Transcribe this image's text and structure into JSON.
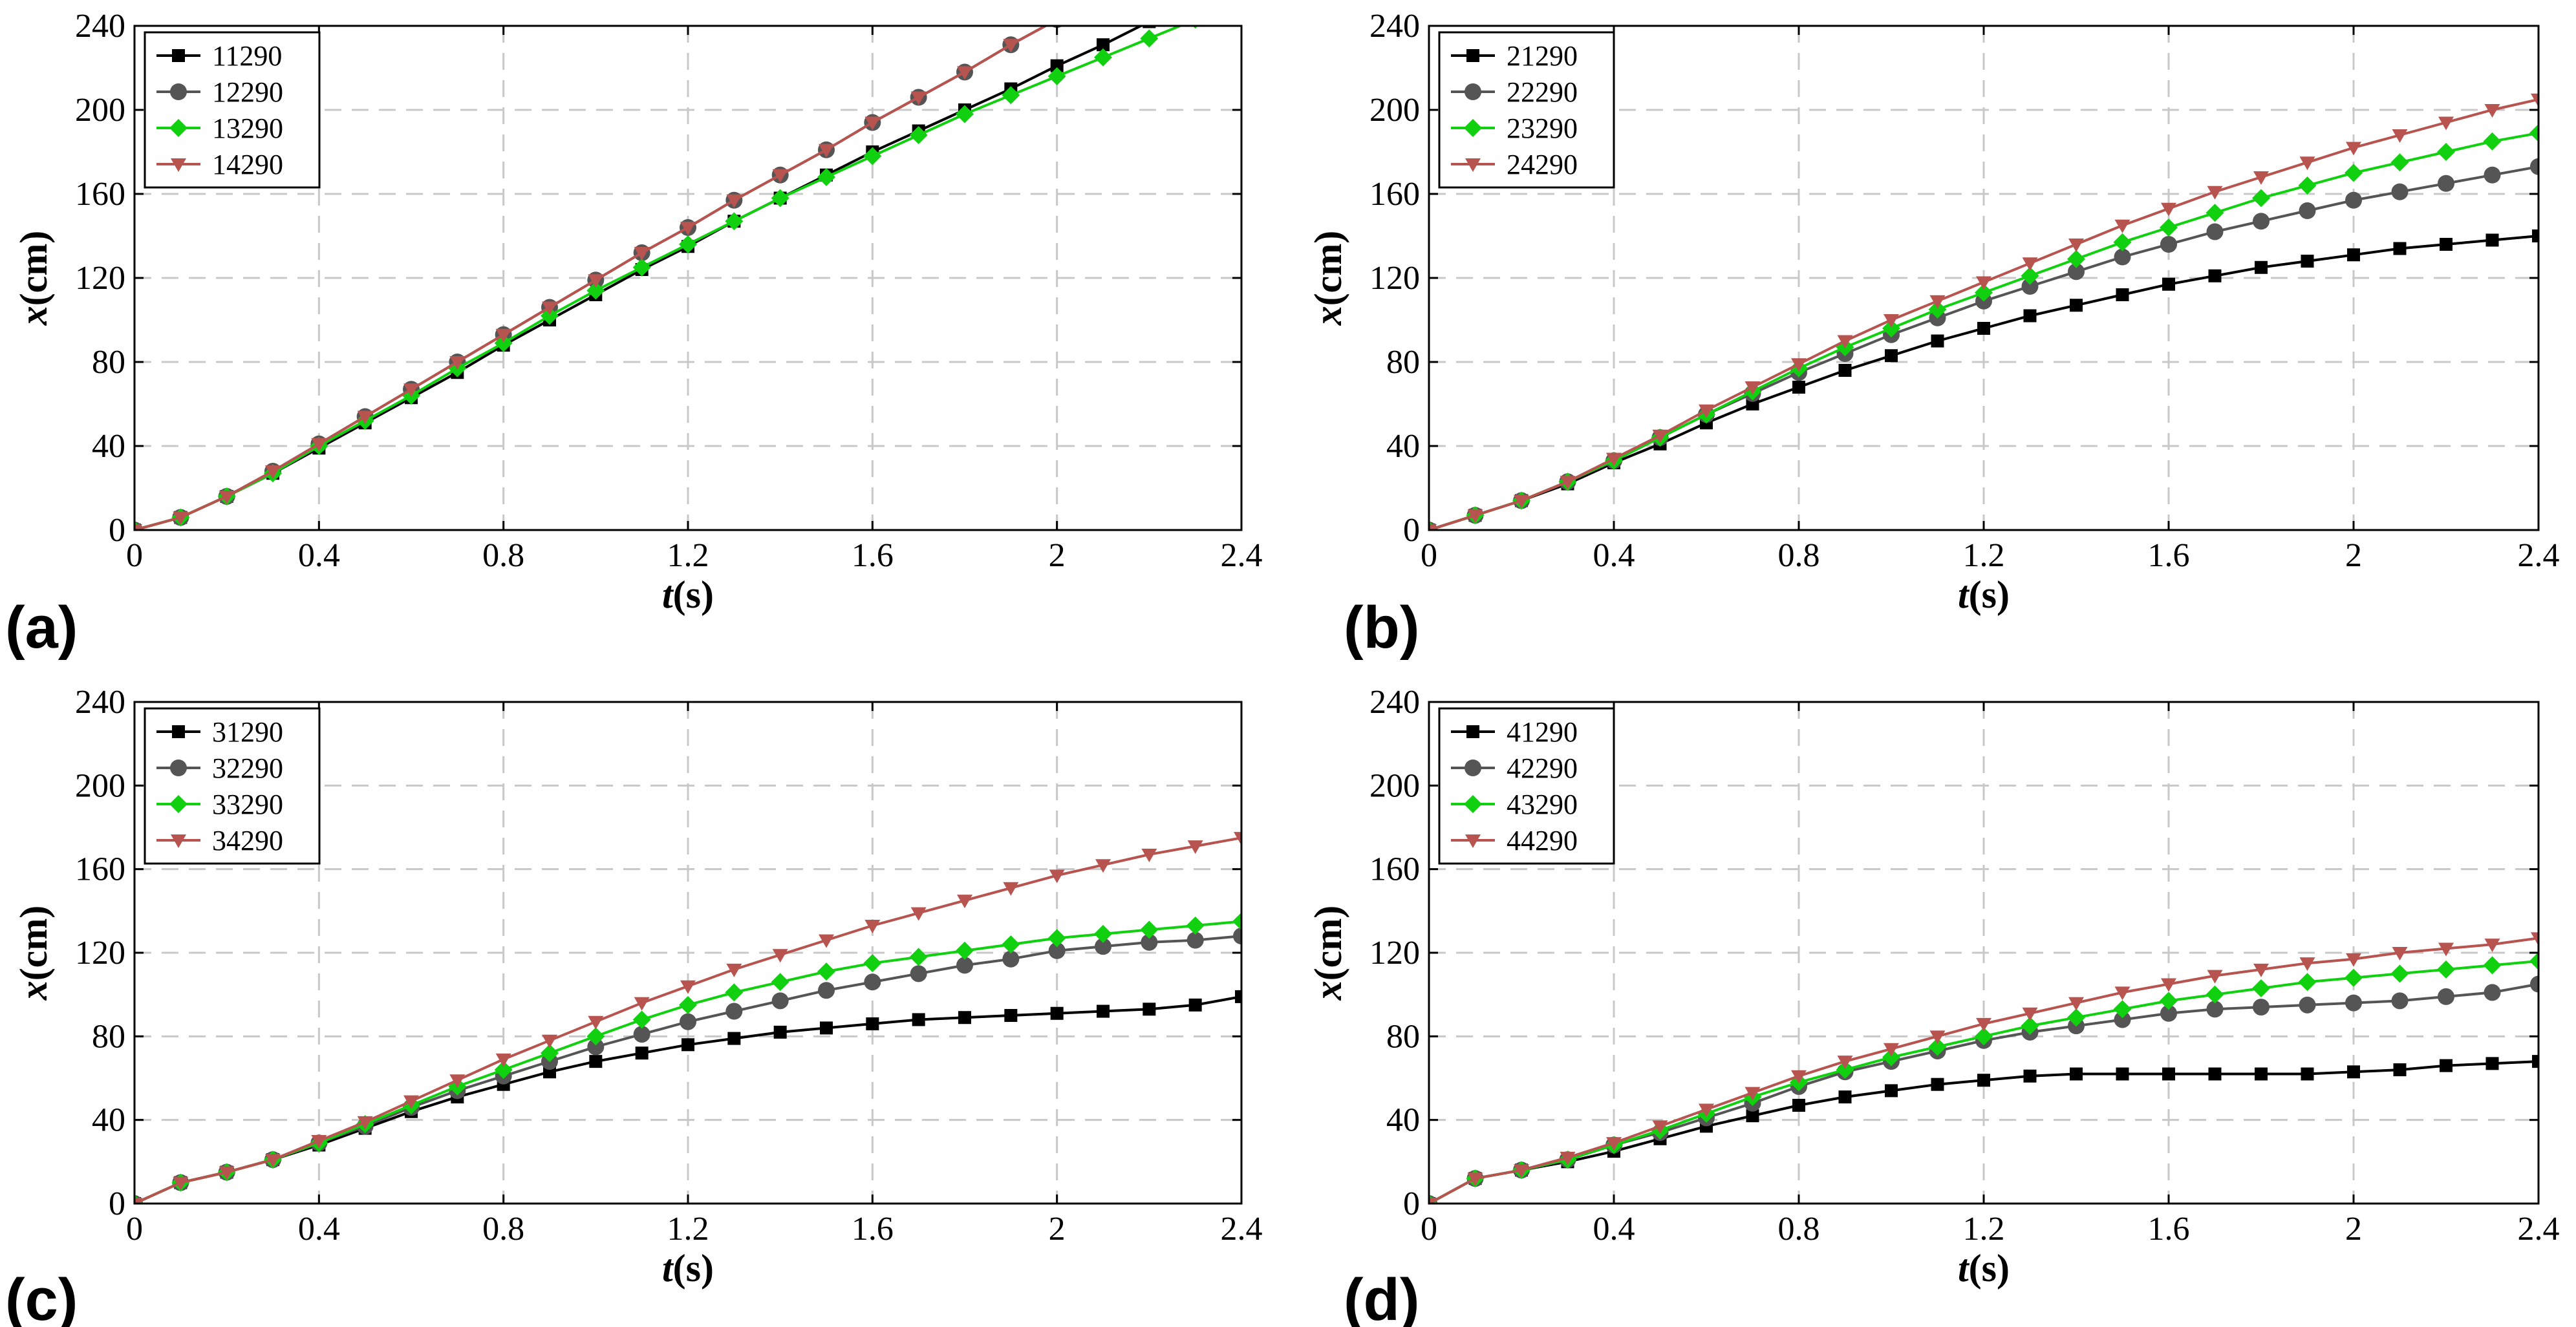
{
  "colors": {
    "s1": "#000000",
    "s2": "#555555",
    "s3": "#10d010",
    "s4": "#b85450"
  },
  "markers": [
    "square",
    "circle",
    "diamond",
    "triangle-down"
  ],
  "chart_data": [
    {
      "tag": "(a)",
      "type": "line",
      "xlabel_var": "t",
      "xlabel_unit": "(s)",
      "ylabel_var": "x",
      "ylabel_unit": "(cm)",
      "xlim": [
        0,
        2.4
      ],
      "ylim": [
        0,
        240
      ],
      "xticks": [
        0,
        0.4,
        0.8,
        1.2,
        1.6,
        2,
        2.4
      ],
      "xtick_labels": [
        "0",
        "0.4",
        "0.8",
        "1.2",
        "1.6",
        "2",
        "2.4"
      ],
      "yticks": [
        0,
        40,
        80,
        120,
        160,
        200,
        240
      ],
      "ytick_labels": [
        "0",
        "40",
        "80",
        "120",
        "160",
        "200",
        "240"
      ],
      "series": [
        {
          "name": "11290",
          "x": [
            0,
            0.1,
            0.2,
            0.3,
            0.4,
            0.5,
            0.6,
            0.7,
            0.8,
            0.9,
            1,
            1.1,
            1.2,
            1.3,
            1.4,
            1.5,
            1.6,
            1.7,
            1.8,
            1.9,
            2,
            2.1,
            2.2
          ],
          "y": [
            0,
            6,
            16,
            27,
            39,
            51,
            63,
            75,
            88,
            100,
            112,
            124,
            135,
            147,
            158,
            169,
            180,
            190,
            200,
            210,
            221,
            231,
            242
          ]
        },
        {
          "name": "12290",
          "x": [
            0,
            0.1,
            0.2,
            0.3,
            0.4,
            0.5,
            0.6,
            0.7,
            0.8,
            0.9,
            1,
            1.1,
            1.2,
            1.3,
            1.4,
            1.5,
            1.6,
            1.7,
            1.8,
            1.9,
            2
          ],
          "y": [
            0,
            6,
            16,
            28,
            41,
            54,
            67,
            80,
            93,
            106,
            119,
            132,
            144,
            157,
            169,
            181,
            194,
            206,
            218,
            231,
            243
          ]
        },
        {
          "name": "13290",
          "x": [
            0,
            0.1,
            0.2,
            0.3,
            0.4,
            0.5,
            0.6,
            0.7,
            0.8,
            0.9,
            1,
            1.1,
            1.2,
            1.3,
            1.4,
            1.5,
            1.6,
            1.7,
            1.8,
            1.9,
            2,
            2.1,
            2.2,
            2.3
          ],
          "y": [
            0,
            6,
            16,
            27,
            40,
            52,
            64,
            77,
            89,
            102,
            114,
            125,
            136,
            147,
            158,
            168,
            178,
            188,
            198,
            207,
            216,
            225,
            234,
            243
          ]
        },
        {
          "name": "14290",
          "x": [
            0,
            0.1,
            0.2,
            0.3,
            0.4,
            0.5,
            0.6,
            0.7,
            0.8,
            0.9,
            1,
            1.1,
            1.2,
            1.3,
            1.4,
            1.5,
            1.6,
            1.7,
            1.8,
            1.9,
            2
          ],
          "y": [
            0,
            6,
            16,
            28,
            41,
            54,
            67,
            80,
            93,
            106,
            119,
            132,
            144,
            157,
            169,
            181,
            194,
            206,
            218,
            231,
            243
          ]
        }
      ]
    },
    {
      "tag": "(b)",
      "type": "line",
      "xlabel_var": "t",
      "xlabel_unit": "(s)",
      "ylabel_var": "x",
      "ylabel_unit": "(cm)",
      "xlim": [
        0,
        2.4
      ],
      "ylim": [
        0,
        240
      ],
      "xticks": [
        0,
        0.4,
        0.8,
        1.2,
        1.6,
        2,
        2.4
      ],
      "xtick_labels": [
        "0",
        "0.4",
        "0.8",
        "1.2",
        "1.6",
        "2",
        "2.4"
      ],
      "yticks": [
        0,
        40,
        80,
        120,
        160,
        200,
        240
      ],
      "ytick_labels": [
        "0",
        "40",
        "80",
        "120",
        "160",
        "200",
        "240"
      ],
      "series": [
        {
          "name": "21290",
          "x": [
            0,
            0.1,
            0.2,
            0.3,
            0.4,
            0.5,
            0.6,
            0.7,
            0.8,
            0.9,
            1,
            1.1,
            1.2,
            1.3,
            1.4,
            1.5,
            1.6,
            1.7,
            1.8,
            1.9,
            2,
            2.1,
            2.2,
            2.3,
            2.4
          ],
          "y": [
            0,
            7,
            14,
            22,
            32,
            41,
            51,
            60,
            68,
            76,
            83,
            90,
            96,
            102,
            107,
            112,
            117,
            121,
            125,
            128,
            131,
            134,
            136,
            138,
            140
          ]
        },
        {
          "name": "22290",
          "x": [
            0,
            0.1,
            0.2,
            0.3,
            0.4,
            0.5,
            0.6,
            0.7,
            0.8,
            0.9,
            1,
            1.1,
            1.2,
            1.3,
            1.4,
            1.5,
            1.6,
            1.7,
            1.8,
            1.9,
            2,
            2.1,
            2.2,
            2.3,
            2.4
          ],
          "y": [
            0,
            7,
            14,
            23,
            33,
            44,
            55,
            65,
            75,
            84,
            93,
            101,
            109,
            116,
            123,
            130,
            136,
            142,
            147,
            152,
            157,
            161,
            165,
            169,
            173
          ]
        },
        {
          "name": "23290",
          "x": [
            0,
            0.1,
            0.2,
            0.3,
            0.4,
            0.5,
            0.6,
            0.7,
            0.8,
            0.9,
            1,
            1.1,
            1.2,
            1.3,
            1.4,
            1.5,
            1.6,
            1.7,
            1.8,
            1.9,
            2,
            2.1,
            2.2,
            2.3,
            2.4
          ],
          "y": [
            0,
            7,
            14,
            23,
            33,
            44,
            55,
            66,
            77,
            87,
            96,
            105,
            113,
            121,
            129,
            137,
            144,
            151,
            158,
            164,
            170,
            175,
            180,
            185,
            189
          ]
        },
        {
          "name": "24290",
          "x": [
            0,
            0.1,
            0.2,
            0.3,
            0.4,
            0.5,
            0.6,
            0.7,
            0.8,
            0.9,
            1,
            1.1,
            1.2,
            1.3,
            1.4,
            1.5,
            1.6,
            1.7,
            1.8,
            1.9,
            2,
            2.1,
            2.2,
            2.3,
            2.4
          ],
          "y": [
            0,
            7,
            14,
            23,
            34,
            45,
            57,
            68,
            79,
            90,
            100,
            109,
            118,
            127,
            136,
            145,
            153,
            161,
            168,
            175,
            182,
            188,
            194,
            200,
            205
          ]
        }
      ]
    },
    {
      "tag": "(c)",
      "type": "line",
      "xlabel_var": "t",
      "xlabel_unit": "(s)",
      "ylabel_var": "x",
      "ylabel_unit": "(cm)",
      "xlim": [
        0,
        2.4
      ],
      "ylim": [
        0,
        240
      ],
      "xticks": [
        0,
        0.4,
        0.8,
        1.2,
        1.6,
        2,
        2.4
      ],
      "xtick_labels": [
        "0",
        "0.4",
        "0.8",
        "1.2",
        "1.6",
        "2",
        "2.4"
      ],
      "yticks": [
        0,
        40,
        80,
        120,
        160,
        200,
        240
      ],
      "ytick_labels": [
        "0",
        "40",
        "80",
        "120",
        "160",
        "200",
        "240"
      ],
      "series": [
        {
          "name": "31290",
          "x": [
            0,
            0.1,
            0.2,
            0.3,
            0.4,
            0.5,
            0.6,
            0.7,
            0.8,
            0.9,
            1,
            1.1,
            1.2,
            1.3,
            1.4,
            1.5,
            1.6,
            1.7,
            1.8,
            1.9,
            2,
            2.1,
            2.2,
            2.3,
            2.4
          ],
          "y": [
            0,
            10,
            15,
            21,
            28,
            36,
            44,
            51,
            57,
            63,
            68,
            72,
            76,
            79,
            82,
            84,
            86,
            88,
            89,
            90,
            91,
            92,
            93,
            95,
            99
          ]
        },
        {
          "name": "32290",
          "x": [
            0,
            0.1,
            0.2,
            0.3,
            0.4,
            0.5,
            0.6,
            0.7,
            0.8,
            0.9,
            1,
            1.1,
            1.2,
            1.3,
            1.4,
            1.5,
            1.6,
            1.7,
            1.8,
            1.9,
            2,
            2.1,
            2.2,
            2.3,
            2.4
          ],
          "y": [
            0,
            10,
            15,
            21,
            29,
            37,
            46,
            54,
            61,
            68,
            75,
            81,
            87,
            92,
            97,
            102,
            106,
            110,
            114,
            117,
            121,
            123,
            125,
            126,
            128
          ]
        },
        {
          "name": "33290",
          "x": [
            0,
            0.1,
            0.2,
            0.3,
            0.4,
            0.5,
            0.6,
            0.7,
            0.8,
            0.9,
            1,
            1.1,
            1.2,
            1.3,
            1.4,
            1.5,
            1.6,
            1.7,
            1.8,
            1.9,
            2,
            2.1,
            2.2,
            2.3,
            2.4
          ],
          "y": [
            0,
            10,
            15,
            21,
            29,
            38,
            47,
            56,
            64,
            72,
            80,
            88,
            95,
            101,
            106,
            111,
            115,
            118,
            121,
            124,
            127,
            129,
            131,
            133,
            135
          ]
        },
        {
          "name": "34290",
          "x": [
            0,
            0.1,
            0.2,
            0.3,
            0.4,
            0.5,
            0.6,
            0.7,
            0.8,
            0.9,
            1,
            1.1,
            1.2,
            1.3,
            1.4,
            1.5,
            1.6,
            1.7,
            1.8,
            1.9,
            2,
            2.1,
            2.2,
            2.3,
            2.4
          ],
          "y": [
            0,
            10,
            15,
            21,
            30,
            39,
            49,
            59,
            69,
            78,
            87,
            96,
            104,
            112,
            119,
            126,
            133,
            139,
            145,
            151,
            157,
            162,
            167,
            171,
            175
          ]
        }
      ]
    },
    {
      "tag": "(d)",
      "type": "line",
      "xlabel_var": "t",
      "xlabel_unit": "(s)",
      "ylabel_var": "x",
      "ylabel_unit": "(cm)",
      "xlim": [
        0,
        2.4
      ],
      "ylim": [
        0,
        240
      ],
      "xticks": [
        0,
        0.4,
        0.8,
        1.2,
        1.6,
        2,
        2.4
      ],
      "xtick_labels": [
        "0",
        "0.4",
        "0.8",
        "1.2",
        "1.6",
        "2",
        "2.4"
      ],
      "yticks": [
        0,
        40,
        80,
        120,
        160,
        200,
        240
      ],
      "ytick_labels": [
        "0",
        "40",
        "80",
        "120",
        "160",
        "200",
        "240"
      ],
      "series": [
        {
          "name": "41290",
          "x": [
            0,
            0.1,
            0.2,
            0.3,
            0.4,
            0.5,
            0.6,
            0.7,
            0.8,
            0.9,
            1,
            1.1,
            1.2,
            1.3,
            1.4,
            1.5,
            1.6,
            1.7,
            1.8,
            1.9,
            2,
            2.1,
            2.2,
            2.3,
            2.4
          ],
          "y": [
            0,
            12,
            16,
            20,
            25,
            31,
            37,
            42,
            47,
            51,
            54,
            57,
            59,
            61,
            62,
            62,
            62,
            62,
            62,
            62,
            63,
            64,
            66,
            67,
            68
          ]
        },
        {
          "name": "42290",
          "x": [
            0,
            0.1,
            0.2,
            0.3,
            0.4,
            0.5,
            0.6,
            0.7,
            0.8,
            0.9,
            1,
            1.1,
            1.2,
            1.3,
            1.4,
            1.5,
            1.6,
            1.7,
            1.8,
            1.9,
            2,
            2.1,
            2.2,
            2.3,
            2.4
          ],
          "y": [
            0,
            12,
            16,
            21,
            28,
            34,
            41,
            48,
            56,
            63,
            68,
            73,
            78,
            82,
            85,
            88,
            91,
            93,
            94,
            95,
            96,
            97,
            99,
            101,
            105
          ]
        },
        {
          "name": "43290",
          "x": [
            0,
            0.1,
            0.2,
            0.3,
            0.4,
            0.5,
            0.6,
            0.7,
            0.8,
            0.9,
            1,
            1.1,
            1.2,
            1.3,
            1.4,
            1.5,
            1.6,
            1.7,
            1.8,
            1.9,
            2,
            2.1,
            2.2,
            2.3,
            2.4
          ],
          "y": [
            0,
            12,
            16,
            21,
            28,
            35,
            43,
            51,
            58,
            64,
            70,
            75,
            80,
            85,
            89,
            93,
            97,
            100,
            103,
            106,
            108,
            110,
            112,
            114,
            116
          ]
        },
        {
          "name": "44290",
          "x": [
            0,
            0.1,
            0.2,
            0.3,
            0.4,
            0.5,
            0.6,
            0.7,
            0.8,
            0.9,
            1,
            1.1,
            1.2,
            1.3,
            1.4,
            1.5,
            1.6,
            1.7,
            1.8,
            1.9,
            2,
            2.1,
            2.2,
            2.3,
            2.4
          ],
          "y": [
            0,
            12,
            16,
            22,
            29,
            37,
            45,
            53,
            61,
            68,
            74,
            80,
            86,
            91,
            96,
            101,
            105,
            109,
            112,
            115,
            117,
            120,
            122,
            124,
            127
          ]
        }
      ]
    }
  ]
}
